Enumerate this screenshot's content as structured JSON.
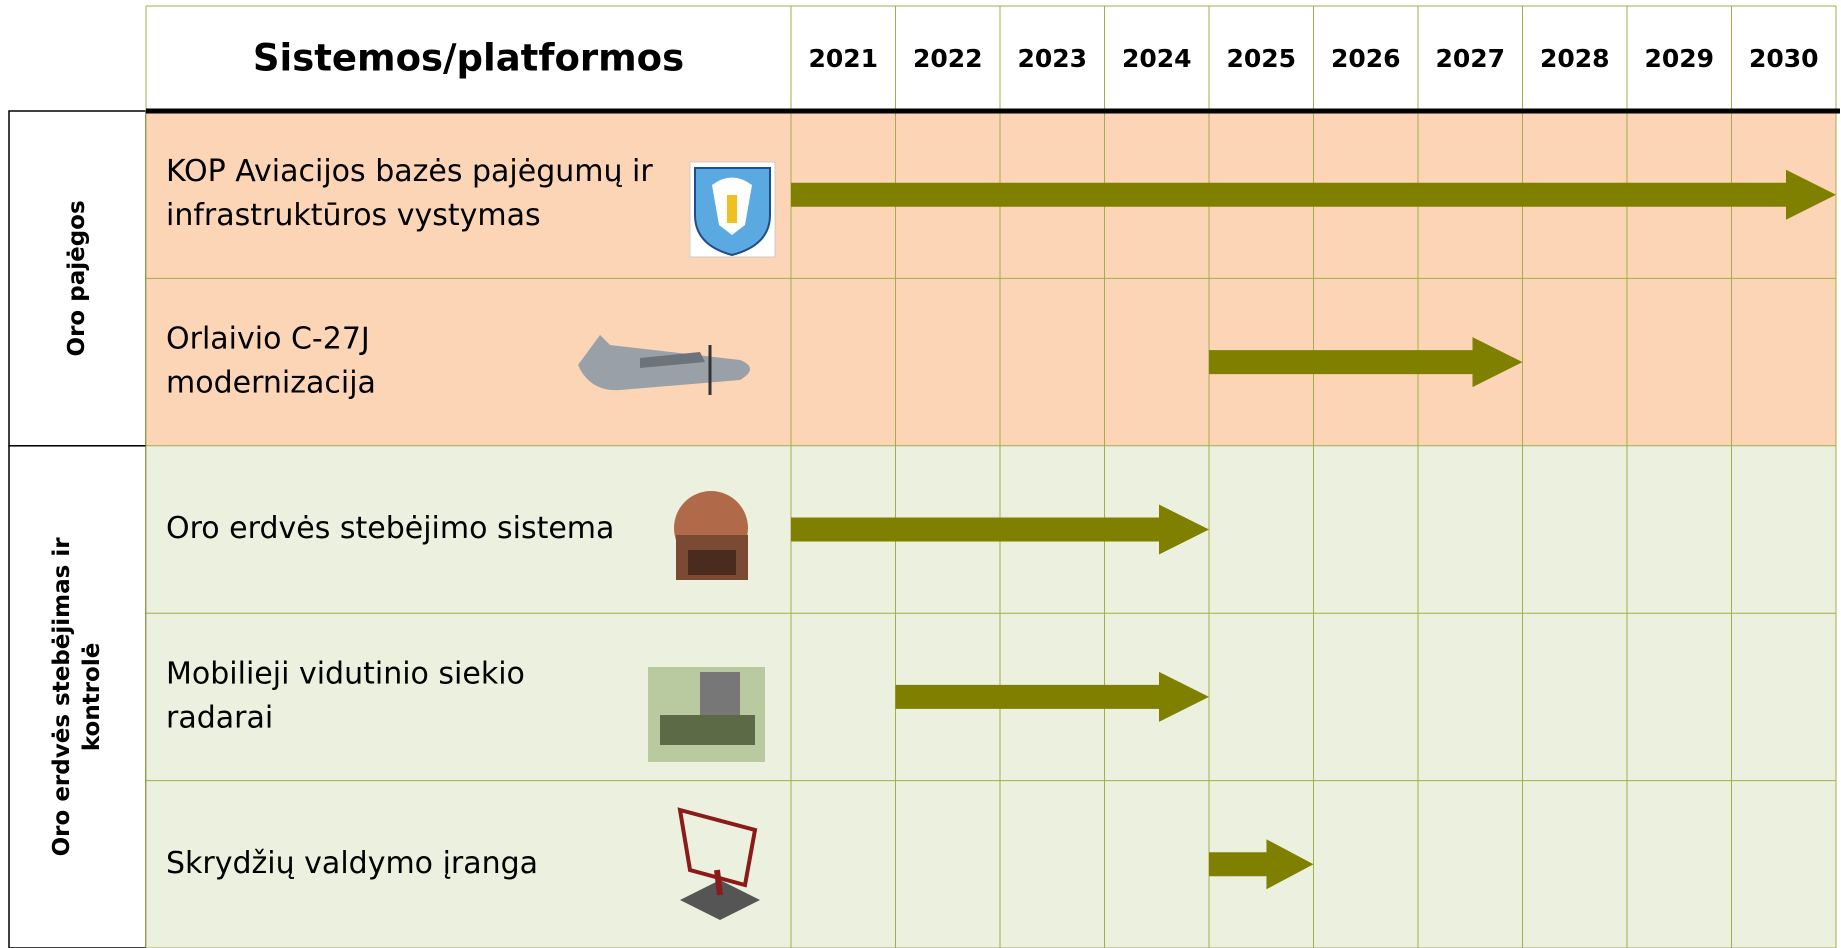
{
  "header": {
    "title": "Sistemos/platformos",
    "years": [
      2021,
      2022,
      2023,
      2024,
      2025,
      2026,
      2027,
      2028,
      2029,
      2030
    ]
  },
  "groups": [
    {
      "label_lines": [
        "Oro pajėgos"
      ],
      "color": "#fbd5b5",
      "rows": [
        {
          "lines": [
            "KOP Aviacijos bazės pajėgumų ir",
            "infrastruktūros vystymas"
          ],
          "start": 2021,
          "end": 2030
        },
        {
          "lines": [
            "Orlaivio C-27J",
            "modernizacija"
          ],
          "start": 2025,
          "end": 2027
        }
      ]
    },
    {
      "label_lines": [
        "Oro erdvės stebėjimas ir",
        "kontrolė"
      ],
      "color": "#ebf1de",
      "rows": [
        {
          "lines": [
            "Oro erdvės stebėjimo sistema"
          ],
          "start": 2021,
          "end": 2024
        },
        {
          "lines": [
            "Mobilieji vidutinio siekio",
            "radarai"
          ],
          "start": 2022,
          "end": 2024
        },
        {
          "lines": [
            "Skrydžių valdymo įranga"
          ],
          "start": 2025,
          "end": 2025
        }
      ]
    }
  ],
  "arrow_color": "#808000"
}
